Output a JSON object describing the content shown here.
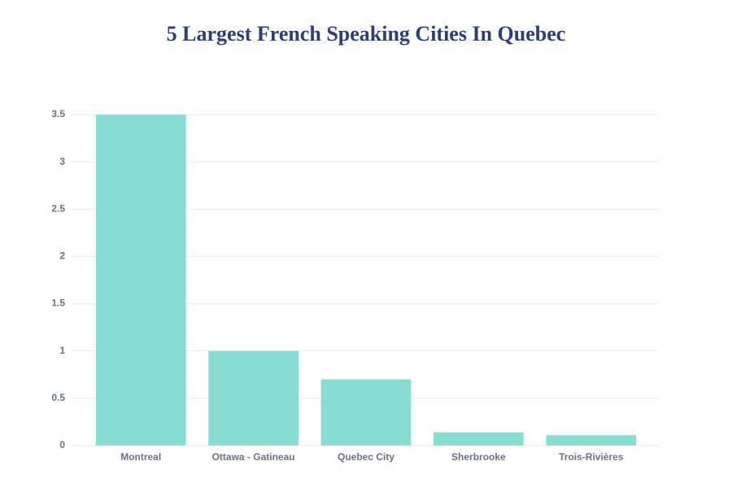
{
  "chart_data": {
    "type": "bar",
    "title": "5 Largest French Speaking Cities In Quebec",
    "categories": [
      "Montreal",
      "Ottawa - Gatineau",
      "Quebec City",
      "Sherbrooke",
      "Trois-Rivières"
    ],
    "values": [
      3.5,
      1.0,
      0.7,
      0.14,
      0.11
    ],
    "color": "#88ddd3",
    "ylim": [
      0,
      3.5
    ],
    "yticks": [
      0,
      0.5,
      1,
      1.5,
      2,
      2.5,
      3,
      3.5
    ],
    "grid": true
  }
}
